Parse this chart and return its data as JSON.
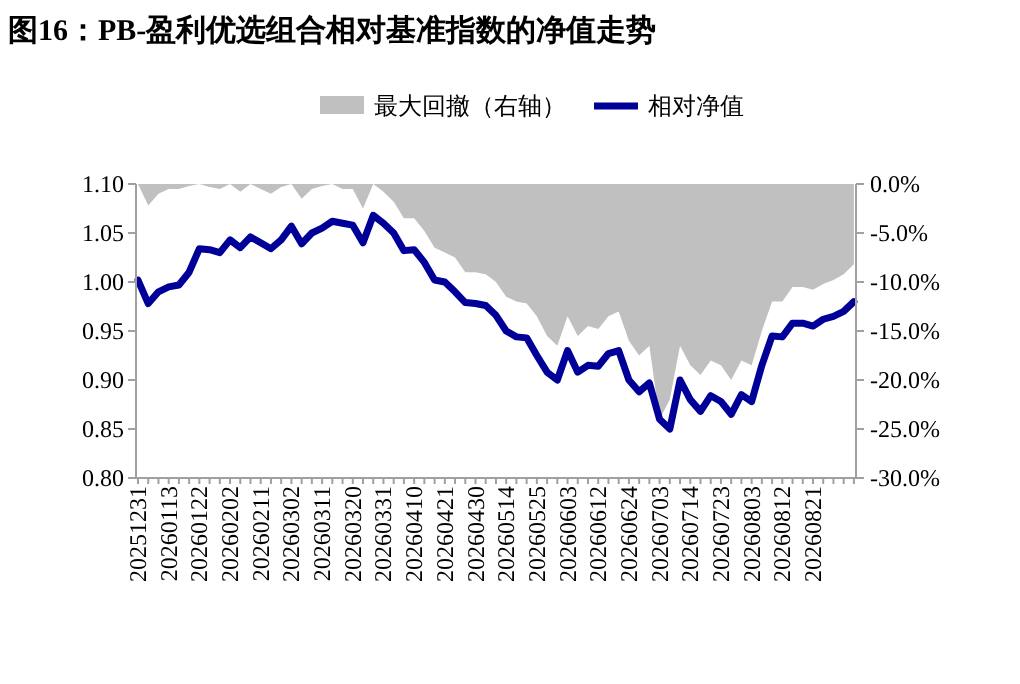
{
  "chart_data": {
    "type": "line",
    "title": "图16：PB-盈利优选组合相对基准指数的净值走势",
    "categories": [
      "20251231",
      null,
      null,
      "20260113",
      null,
      null,
      "20260122",
      null,
      null,
      "20260202",
      null,
      null,
      "20260211",
      null,
      null,
      "20260302",
      null,
      null,
      "20260311",
      null,
      null,
      "20260320",
      null,
      null,
      "20260331",
      null,
      null,
      "20260410",
      null,
      null,
      "20260421",
      null,
      null,
      "20260430",
      null,
      null,
      "20260514",
      null,
      null,
      "20260525",
      null,
      null,
      "20260603",
      null,
      null,
      "20260612",
      null,
      null,
      "20260624",
      null,
      null,
      "20260703",
      null,
      null,
      "20260714",
      null,
      null,
      "20260723",
      null,
      null,
      "20260803",
      null,
      null,
      "20260812",
      null,
      null,
      "20260821",
      null,
      null,
      null,
      null
    ],
    "series": [
      {
        "name": "最大回撤（右轴）",
        "type": "area",
        "axis": "y2",
        "color": "#c0c0c0",
        "values": [
          0,
          -2.2,
          -1,
          -0.5,
          -0.5,
          -0.2,
          0,
          -0.3,
          -0.5,
          0,
          -0.8,
          0,
          -0.5,
          -1,
          -0.3,
          0,
          -1.5,
          -0.5,
          -0.2,
          0,
          -0.5,
          -0.5,
          -2.5,
          0,
          -0.8,
          -1.8,
          -3.5,
          -3.5,
          -4.8,
          -6.5,
          -7,
          -7.5,
          -9,
          -9,
          -9.2,
          -10,
          -11.5,
          -12,
          -12.2,
          -13.5,
          -15.5,
          -16.5,
          -13.5,
          -15.5,
          -14.5,
          -14.8,
          -13.5,
          -13,
          -16,
          -17.5,
          -16.5,
          -24,
          -22,
          -16.5,
          -18.5,
          -19.5,
          -18,
          -18.5,
          -20,
          -18,
          -18.5,
          -15,
          -12,
          -12,
          -10.5,
          -10.5,
          -10.8,
          -10.2,
          -9.8,
          -9.2,
          -8.2
        ]
      },
      {
        "name": "相对净值",
        "color": "#000099",
        "values": [
          1.002,
          0.978,
          0.99,
          0.995,
          0.997,
          1.01,
          1.034,
          1.033,
          1.03,
          1.043,
          1.035,
          1.046,
          1.04,
          1.034,
          1.043,
          1.057,
          1.039,
          1.05,
          1.055,
          1.062,
          1.06,
          1.058,
          1.04,
          1.068,
          1.06,
          1.05,
          1.032,
          1.033,
          1.02,
          1.002,
          1.0,
          0.99,
          0.979,
          0.978,
          0.976,
          0.966,
          0.95,
          0.944,
          0.943,
          0.925,
          0.908,
          0.9,
          0.93,
          0.908,
          0.915,
          0.914,
          0.927,
          0.93,
          0.9,
          0.888,
          0.897,
          0.86,
          0.85,
          0.9,
          0.88,
          0.868,
          0.884,
          0.878,
          0.865,
          0.885,
          0.878,
          0.915,
          0.945,
          0.944,
          0.958,
          0.958,
          0.955,
          0.962,
          0.965,
          0.97,
          0.98
        ]
      }
    ],
    "ylim": [
      0.8,
      1.1
    ],
    "yticks": [
      {
        "value": 0.8,
        "label": "0.80"
      },
      {
        "value": 0.85,
        "label": "0.85"
      },
      {
        "value": 0.9,
        "label": "0.90"
      },
      {
        "value": 0.95,
        "label": "0.95"
      },
      {
        "value": 1.0,
        "label": "1.00"
      },
      {
        "value": 1.05,
        "label": "1.05"
      },
      {
        "value": 1.1,
        "label": "1.10"
      }
    ],
    "y2lim": [
      -30,
      0
    ],
    "y2ticks": [
      {
        "value": 0,
        "label": "0.0%"
      },
      {
        "value": -5,
        "label": "-5.0%"
      },
      {
        "value": -10,
        "label": "-10.0%"
      },
      {
        "value": -15,
        "label": "-15.0%"
      },
      {
        "value": -20,
        "label": "-20.0%"
      },
      {
        "value": -25,
        "label": "-25.0%"
      },
      {
        "value": -30,
        "label": "-30.0%"
      }
    ],
    "legend": "top",
    "grid": false
  }
}
